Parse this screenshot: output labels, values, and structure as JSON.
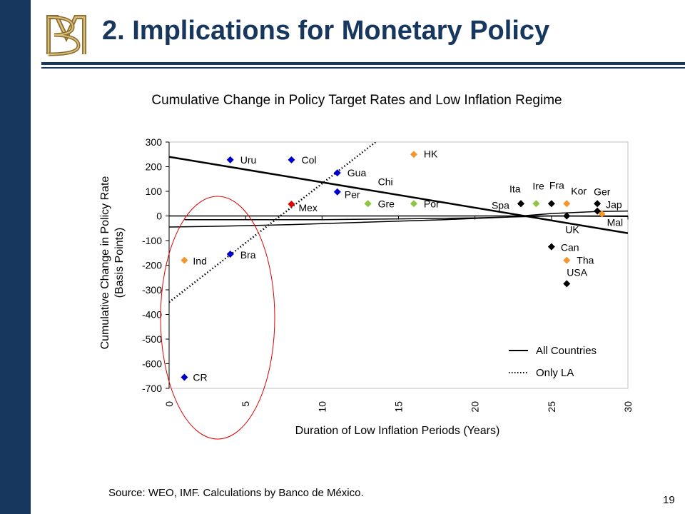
{
  "slide": {
    "title": "2. Implications for Monetary Policy",
    "logo_letters": "BM",
    "source": "Source: WEO, IMF. Calculations by Banco de México.",
    "page_number": "19"
  },
  "chart_data": {
    "type": "scatter",
    "title": "Cumulative Change in Policy Target Rates and Low Inflation Regime",
    "xlabel": "Duration of Low Inflation Periods (Years)",
    "ylabel_lines": [
      "Cumulative Change in Policy Rate",
      "(Basis Points)"
    ],
    "xlim": [
      0,
      30
    ],
    "ylim": [
      -700,
      300
    ],
    "x_ticks": [
      0,
      5,
      10,
      15,
      20,
      25,
      30
    ],
    "y_ticks": [
      300,
      200,
      100,
      0,
      -100,
      -200,
      -300,
      -400,
      -500,
      -600,
      -700
    ],
    "colors": {
      "latin_america": "#0000cc",
      "asia": "#f4962e",
      "europe": "#8dc63f",
      "advanced": "#000000",
      "mexico": "#dd0000",
      "highlight_ellipse": "#dd0000"
    },
    "points": [
      {
        "label": "CR",
        "x": 1,
        "y": -655,
        "group": "latin_america"
      },
      {
        "label": "Ind",
        "x": 1,
        "y": -180,
        "group": "asia"
      },
      {
        "label": "Bra",
        "x": 4,
        "y": -155,
        "group": "latin_america"
      },
      {
        "label": "Uru",
        "x": 4,
        "y": 228,
        "group": "latin_america"
      },
      {
        "label": "Col",
        "x": 8,
        "y": 228,
        "group": "latin_america"
      },
      {
        "label": "Mex",
        "x": 8,
        "y": 48,
        "group": "mexico"
      },
      {
        "label": "Gua",
        "x": 11,
        "y": 175,
        "group": "latin_america"
      },
      {
        "label": "Per",
        "x": 11,
        "y": 98,
        "group": "latin_america"
      },
      {
        "label": "Chi",
        "x": 13,
        "y": 50,
        "group": "europe"
      },
      {
        "label": "Gre",
        "x": 13,
        "y": 50,
        "group": "europe"
      },
      {
        "label": "HK",
        "x": 16,
        "y": 250,
        "group": "asia"
      },
      {
        "label": "Por",
        "x": 16,
        "y": 50,
        "group": "europe"
      },
      {
        "label": "Ita",
        "x": 23,
        "y": 50,
        "group": "advanced"
      },
      {
        "label": "Spa",
        "x": 23,
        "y": 50,
        "group": "advanced"
      },
      {
        "label": "Ire",
        "x": 24,
        "y": 50,
        "group": "europe"
      },
      {
        "label": "Fra",
        "x": 25,
        "y": 50,
        "group": "advanced"
      },
      {
        "label": "Kor",
        "x": 26,
        "y": 50,
        "group": "asia"
      },
      {
        "label": "Ger",
        "x": 28,
        "y": 50,
        "group": "advanced"
      },
      {
        "label": "Jap",
        "x": 28,
        "y": 20,
        "group": "advanced"
      },
      {
        "label": "Mal",
        "x": 28.3,
        "y": 8,
        "group": "asia"
      },
      {
        "label": "UK",
        "x": 26,
        "y": 0,
        "group": "advanced"
      },
      {
        "label": "Can",
        "x": 25,
        "y": -125,
        "group": "advanced"
      },
      {
        "label": "Tha",
        "x": 26,
        "y": -180,
        "group": "asia"
      },
      {
        "label": "USA",
        "x": 26,
        "y": -275,
        "group": "advanced"
      }
    ],
    "series": [
      {
        "name": "All Countries",
        "style": "solid-thin",
        "points": [
          [
            1,
            -15
          ],
          [
            5,
            -15
          ],
          [
            10,
            -15
          ],
          [
            15,
            -12
          ],
          [
            20,
            -8
          ],
          [
            25,
            0
          ],
          [
            30,
            -2
          ]
        ]
      },
      {
        "name": "All Countries",
        "style": "solid-thin",
        "points": [
          [
            0,
            -45
          ],
          [
            3,
            -42
          ],
          [
            8,
            -35
          ],
          [
            13,
            -25
          ],
          [
            18,
            -15
          ],
          [
            22,
            -5
          ],
          [
            25,
            10
          ],
          [
            28,
            18
          ],
          [
            30,
            20
          ]
        ]
      },
      {
        "name": "All Countries",
        "style": "solid-thick",
        "points": [
          [
            0,
            240
          ],
          [
            30,
            -70
          ]
        ]
      },
      {
        "name": "Only LA",
        "style": "dotted",
        "points": [
          [
            0,
            -350
          ],
          [
            13.5,
            300
          ]
        ]
      }
    ],
    "legend": {
      "placement": "bottom-right",
      "entries": [
        {
          "label": "All Countries",
          "style": "solid"
        },
        {
          "label": "Only LA",
          "style": "dotted"
        }
      ]
    }
  }
}
